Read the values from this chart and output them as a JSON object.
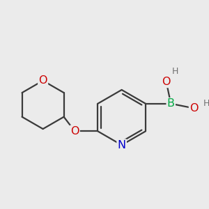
{
  "background_color": "#ebebeb",
  "bond_color": "#3a3a3a",
  "bond_width": 1.6,
  "atom_colors": {
    "O": "#cc0000",
    "N": "#0000cc",
    "B": "#00aa44",
    "H": "#707070",
    "C": "#3a3a3a"
  },
  "font_size": 11.5,
  "fig_bg": "#ebebeb"
}
